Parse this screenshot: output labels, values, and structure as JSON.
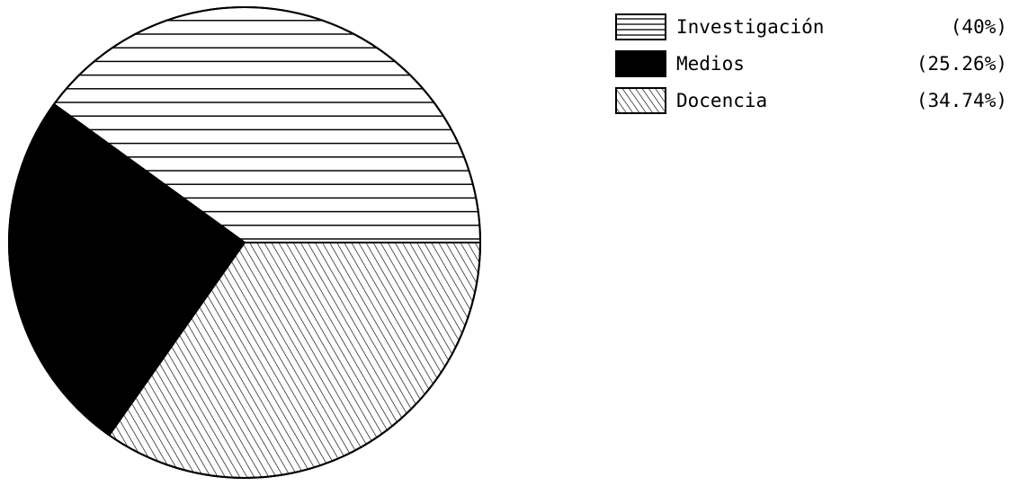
{
  "chart_data": {
    "type": "pie",
    "title": "",
    "slices": [
      {
        "label": "Investigación",
        "value": 40,
        "value_label": "(40%)",
        "fill": "horizontal-hatch"
      },
      {
        "label": "Medios",
        "value": 25.26,
        "value_label": "(25.26%)",
        "fill": "solid-black"
      },
      {
        "label": "Docencia",
        "value": 34.74,
        "value_label": "(34.74%)",
        "fill": "diagonal-hatch"
      }
    ],
    "legend_position": "top-right",
    "start_direction": "right",
    "direction": "counterclockwise"
  },
  "colors": {
    "ink": "#000000",
    "background": "#ffffff"
  }
}
